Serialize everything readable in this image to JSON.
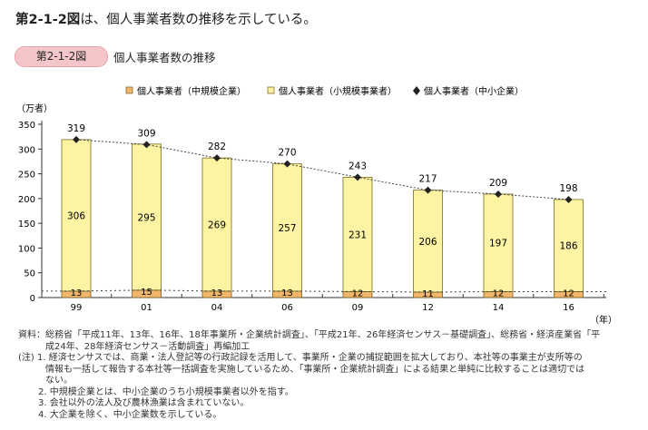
{
  "headline": {
    "bold": "第2-1-2図",
    "rest": "は、個人事業者数の推移を示している。"
  },
  "figure": {
    "badge": "第2-1-2図",
    "title": "個人事業者数の推移"
  },
  "chart_data": {
    "type": "bar",
    "stacked": true,
    "title": "個人事業者数の推移",
    "ylabel": "（万者）",
    "xlabel": "（年）",
    "ylim": [
      0,
      350
    ],
    "yticks": [
      0,
      50,
      100,
      150,
      200,
      250,
      300,
      350
    ],
    "categories": [
      "99",
      "01",
      "04",
      "06",
      "09",
      "12",
      "14",
      "16"
    ],
    "series": [
      {
        "name": "個人事業者（中規模企業）",
        "color": "#f2b66a",
        "values": [
          13,
          15,
          13,
          13,
          12,
          11,
          12,
          12
        ]
      },
      {
        "name": "個人事業者（小規模事業者）",
        "color": "#fdf4a3",
        "values": [
          306,
          295,
          269,
          257,
          231,
          206,
          197,
          186
        ]
      },
      {
        "name": "個人事業者（中小企業）",
        "type": "line",
        "marker": "diamond",
        "color": "#222222",
        "values": [
          319,
          309,
          282,
          270,
          243,
          217,
          209,
          198
        ]
      }
    ],
    "legend_position": "top-center",
    "grid": false
  },
  "notes": {
    "source1": "資料：総務省「平成11年、13年、16年、18年事業所・企業統計調査」、「平成21年、26年経済センサス－基礎調査」、総務省・経済産業省「平",
    "source2": "成24年、28年経済センサス－活動調査」再編加工",
    "n1a": "(注) 1. 経済センサスでは、商業・法人登記等の行政記録を活用して、事業所・企業の捕捉範囲を拡大しており、本社等の事業主が支所等の",
    "n1b": "情報も一括して報告する本社等一括調査を実施しているため、「事業所・企業統計調査」による結果と単純に比較することは適切では",
    "n1c": "ない。",
    "n2": "2. 中規模企業とは、中小企業のうち小規模事業者以外を指す。",
    "n3": "3. 会社以外の法人及び農林漁業は含まれていない。",
    "n4": "4. 大企業を除く、中小企業数を示している。"
  }
}
